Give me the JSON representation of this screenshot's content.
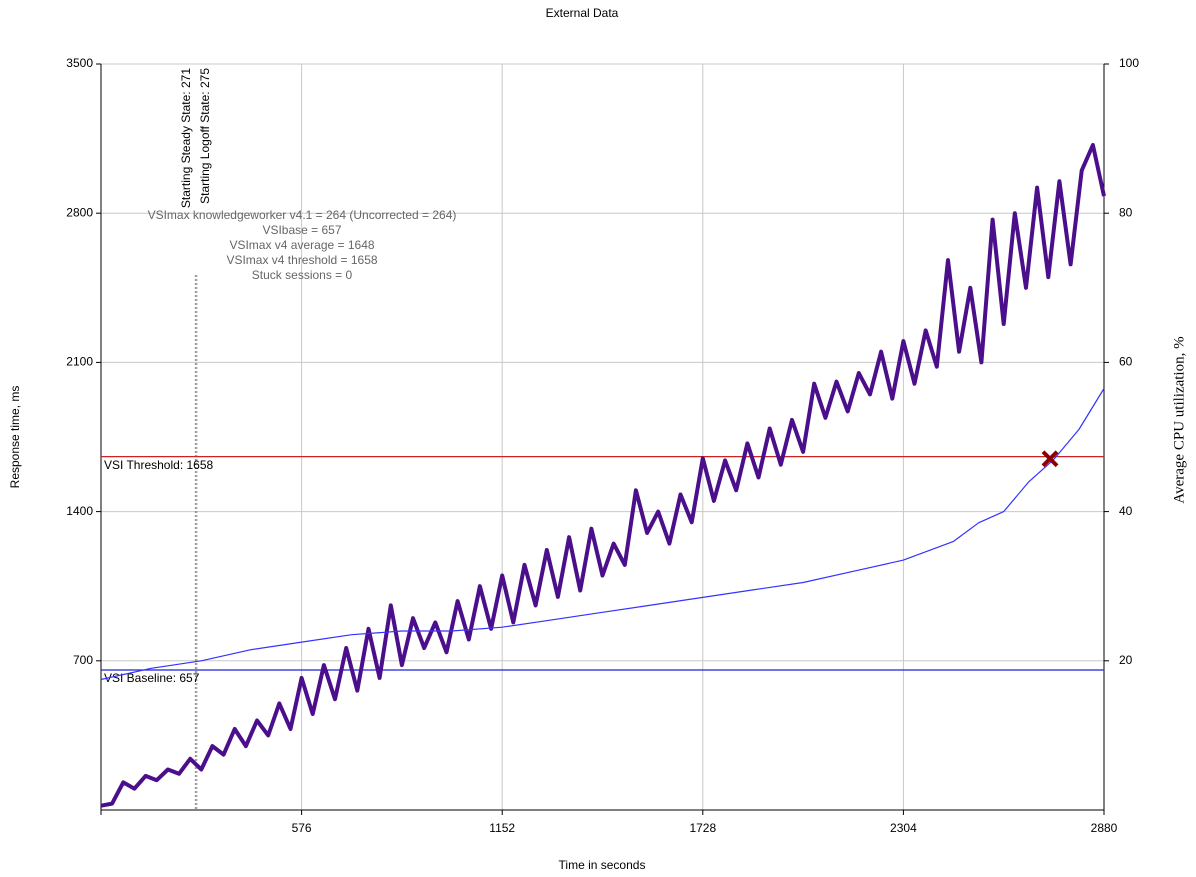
{
  "chart_data": {
    "type": "line",
    "title": "External Data",
    "xlabel": "Time in seconds",
    "ylabel": "Response time, ms",
    "y2label": "Average CPU utilization, %",
    "xlim": [
      0,
      2880
    ],
    "xticks": [
      576,
      1152,
      1728,
      2304,
      2880
    ],
    "ylim": [
      0,
      3500
    ],
    "yticks": [
      700,
      1400,
      2100,
      2800,
      3500
    ],
    "y2lim": [
      0,
      100
    ],
    "y2ticks": [
      20,
      40,
      60,
      80,
      100
    ],
    "grid": true,
    "series": [
      {
        "color": "#4b0f8c",
        "x": [
          0,
          32,
          64,
          96,
          128,
          160,
          192,
          224,
          256,
          288,
          320,
          352,
          384,
          416,
          448,
          480,
          512,
          544,
          576,
          608,
          640,
          672,
          704,
          736,
          768,
          800,
          832,
          864,
          896,
          928,
          960,
          992,
          1024,
          1056,
          1088,
          1120,
          1152,
          1184,
          1216,
          1248,
          1280,
          1312,
          1344,
          1376,
          1408,
          1440,
          1472,
          1504,
          1536,
          1568,
          1600,
          1632,
          1664,
          1696,
          1728,
          1760,
          1792,
          1824,
          1856,
          1888,
          1920,
          1952,
          1984,
          2016,
          2048,
          2080,
          2112,
          2144,
          2176,
          2208,
          2240,
          2272,
          2304,
          2336,
          2368,
          2400,
          2432,
          2464,
          2496,
          2528,
          2560,
          2592,
          2624,
          2656,
          2688,
          2720,
          2752,
          2784,
          2816,
          2848,
          2880
        ],
        "values": [
          20,
          30,
          130,
          100,
          160,
          140,
          190,
          170,
          240,
          190,
          300,
          260,
          380,
          300,
          420,
          350,
          500,
          380,
          620,
          450,
          680,
          520,
          760,
          560,
          850,
          620,
          960,
          680,
          900,
          760,
          880,
          740,
          980,
          800,
          1050,
          850,
          1100,
          880,
          1150,
          960,
          1220,
          1000,
          1280,
          1030,
          1320,
          1100,
          1250,
          1150,
          1500,
          1300,
          1400,
          1250,
          1480,
          1350,
          1650,
          1450,
          1640,
          1500,
          1720,
          1560,
          1790,
          1620,
          1830,
          1680,
          2000,
          1840,
          2010,
          1870,
          2050,
          1950,
          2150,
          1930,
          2200,
          2000,
          2250,
          2080,
          2580,
          2150,
          2450,
          2100,
          2770,
          2280,
          2800,
          2450,
          2920,
          2500,
          2950,
          2560,
          3000,
          3120,
          2880
        ]
      },
      {
        "color": "#3333ff",
        "axis": "y2",
        "x": [
          0,
          144,
          288,
          432,
          576,
          720,
          864,
          1008,
          1152,
          1296,
          1440,
          1584,
          1728,
          1872,
          2016,
          2160,
          2304,
          2448,
          2520,
          2592,
          2664,
          2736,
          2808,
          2880
        ],
        "values": [
          17.5,
          19,
          20,
          21.5,
          22.5,
          23.5,
          24,
          24,
          24.5,
          25.5,
          26.5,
          27.5,
          28.5,
          29.5,
          30.5,
          32,
          33.5,
          36,
          38.5,
          40,
          44,
          47,
          51,
          56.5
        ]
      }
    ],
    "reference_lines": [
      {
        "label": "VSI Threshold: 1658",
        "value": 1658,
        "color": "#cc2222"
      },
      {
        "label": "VSI Baseline: 657",
        "value": 657,
        "color": "#2222dd"
      }
    ],
    "state_lines": [
      {
        "label": "Starting Steady State: 271",
        "value": 271
      },
      {
        "label": "Starting Logoff State: 275",
        "value": 275
      }
    ],
    "summary": [
      "VSImax knowledgeworker v4.1 = 264 (Uncorrected = 264)",
      "VSIbase = 657",
      "VSImax v4 average = 1648",
      "VSImax v4 threshold = 1658",
      "Stuck sessions = 0"
    ],
    "vsimax_marker": {
      "x": 2725,
      "y": 1648,
      "color": "#8b0000"
    }
  }
}
